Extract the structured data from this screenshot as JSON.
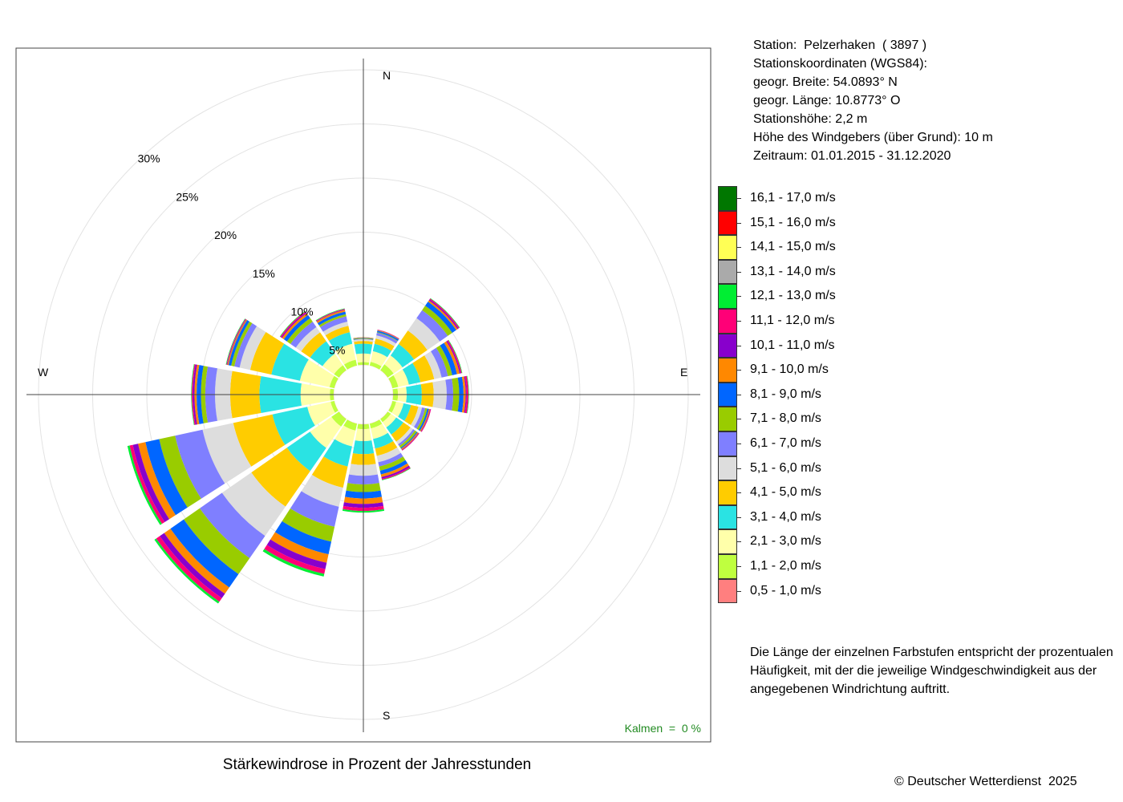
{
  "chart_data": {
    "type": "windrose",
    "title": "Stärkewindrose in Prozent der Jahresstunden",
    "directions": [
      "N",
      "NNE",
      "NE",
      "ENE",
      "E",
      "ESE",
      "SE",
      "SSE",
      "S",
      "SSW",
      "SW",
      "WSW",
      "W",
      "WNW",
      "NW",
      "NNW"
    ],
    "direction_angles_deg": [
      0,
      22.5,
      45,
      67.5,
      90,
      112.5,
      135,
      157.5,
      180,
      202.5,
      225,
      247.5,
      270,
      292.5,
      315,
      337.5
    ],
    "compass_labels": {
      "N": "N",
      "E": "E",
      "S": "S",
      "W": "W"
    },
    "radial_ticks": [
      5,
      10,
      15,
      20,
      25,
      30
    ],
    "radial_tick_labels": [
      "5%",
      "10%",
      "15%",
      "20%",
      "25%",
      "30%"
    ],
    "calm_label": "Kalmen  =  0 %",
    "calm_percent": 0,
    "speed_classes": [
      {
        "label": "0,5 - 1,0 m/s",
        "color": "#ff7f7f"
      },
      {
        "label": "1,1 - 2,0 m/s",
        "color": "#bfff3f"
      },
      {
        "label": "2,1 - 3,0 m/s",
        "color": "#ffffaa"
      },
      {
        "label": "3,1 - 4,0 m/s",
        "color": "#2ae3e3"
      },
      {
        "label": "4,1 - 5,0 m/s",
        "color": "#ffcc00"
      },
      {
        "label": "5,1 - 6,0 m/s",
        "color": "#dddddd"
      },
      {
        "label": "6,1 - 7,0 m/s",
        "color": "#7f7fff"
      },
      {
        "label": "7,1 - 8,0 m/s",
        "color": "#99cc00"
      },
      {
        "label": "8,1 - 9,0 m/s",
        "color": "#0066ff"
      },
      {
        "label": "9,1 - 10,0 m/s",
        "color": "#ff8800"
      },
      {
        "label": "10,1 - 11,0 m/s",
        "color": "#8800cc"
      },
      {
        "label": "11,1 - 12,0 m/s",
        "color": "#ff0077"
      },
      {
        "label": "12,1 - 13,0 m/s",
        "color": "#00ee33"
      },
      {
        "label": "13,1 - 14,0 m/s",
        "color": "#aaaaaa"
      },
      {
        "label": "14,1 - 15,0 m/s",
        "color": "#ffff55"
      },
      {
        "label": "15,1 - 16,0 m/s",
        "color": "#ff0000"
      },
      {
        "label": "16,1 - 17,0 m/s",
        "color": "#007700"
      }
    ],
    "cumulative_percent": [
      [
        2.75,
        3.0,
        3.8,
        4.7,
        4.95,
        5.1,
        5.15,
        5.2,
        5.25,
        5.3,
        5.3,
        5.3,
        5.3,
        5.3,
        5.3,
        5.3,
        5.3
      ],
      [
        2.75,
        3.1,
        4.1,
        4.8,
        5.3,
        5.6,
        5.85,
        5.9,
        6.05,
        6.1,
        6.12,
        6.15,
        6.15,
        6.15,
        6.15,
        6.15,
        6.15
      ],
      [
        2.75,
        3.4,
        4.4,
        5.7,
        7.2,
        8.6,
        9.5,
        10.0,
        10.45,
        10.6,
        10.7,
        10.8,
        10.85,
        10.85,
        10.85,
        10.85,
        10.85
      ],
      [
        2.75,
        3.3,
        4.3,
        5.4,
        6.7,
        7.4,
        8.0,
        8.4,
        8.85,
        9.1,
        9.2,
        9.3,
        9.35,
        9.35,
        9.35,
        9.35,
        9.35
      ],
      [
        2.75,
        3.2,
        4.0,
        5.4,
        6.5,
        7.7,
        8.3,
        8.85,
        9.25,
        9.45,
        9.55,
        9.7,
        9.75,
        9.75,
        9.75,
        9.75,
        9.75
      ],
      [
        2.75,
        3.1,
        3.8,
        4.5,
        5.2,
        5.55,
        5.85,
        6.05,
        6.2,
        6.3,
        6.35,
        6.4,
        6.4,
        6.4,
        6.4,
        6.4,
        6.4
      ],
      [
        2.75,
        3.1,
        3.7,
        4.5,
        5.3,
        5.6,
        5.8,
        6.0,
        6.1,
        6.2,
        6.25,
        6.3,
        6.3,
        6.3,
        6.3,
        6.3,
        6.3
      ],
      [
        2.75,
        3.2,
        4.2,
        5.1,
        5.8,
        6.4,
        6.8,
        7.2,
        7.55,
        7.8,
        7.95,
        8.05,
        8.1,
        8.1,
        8.1,
        8.1,
        8.1
      ],
      [
        2.75,
        3.2,
        4.3,
        5.5,
        6.5,
        7.5,
        8.3,
        9.0,
        9.6,
        10.1,
        10.45,
        10.75,
        10.9,
        10.9,
        10.9,
        10.9,
        10.9
      ],
      [
        2.75,
        3.4,
        4.9,
        6.8,
        8.8,
        10.6,
        12.5,
        13.9,
        15.1,
        15.9,
        16.5,
        16.95,
        17.2,
        17.2,
        17.2,
        17.2,
        17.2
      ],
      [
        2.75,
        3.6,
        6.0,
        8.6,
        12.6,
        15.9,
        18.4,
        20.2,
        21.7,
        22.4,
        22.9,
        23.3,
        23.5,
        23.5,
        23.5,
        23.5,
        23.5
      ],
      [
        2.75,
        3.1,
        5.3,
        8.6,
        12.3,
        15.2,
        17.8,
        19.3,
        20.6,
        21.3,
        21.8,
        22.1,
        22.3,
        22.3,
        22.3,
        22.3,
        22.3
      ],
      [
        2.75,
        3.1,
        5.8,
        9.6,
        12.3,
        13.7,
        14.6,
        15.0,
        15.4,
        15.6,
        15.75,
        15.85,
        15.9,
        15.9,
        15.9,
        15.9,
        15.9
      ],
      [
        2.75,
        3.2,
        6.0,
        8.7,
        10.7,
        11.7,
        12.2,
        12.5,
        12.75,
        12.85,
        12.9,
        12.95,
        13.0,
        13.0,
        13.0,
        13.0,
        13.0
      ],
      [
        2.75,
        3.3,
        4.6,
        6.0,
        7.0,
        7.6,
        8.2,
        8.6,
        8.95,
        9.15,
        9.25,
        9.35,
        9.4,
        9.4,
        9.4,
        9.4,
        9.4
      ],
      [
        2.75,
        3.3,
        4.8,
        5.9,
        6.5,
        6.9,
        7.4,
        7.6,
        7.85,
        8.0,
        8.05,
        8.1,
        8.15,
        8.15,
        8.15,
        8.15,
        8.15
      ]
    ]
  },
  "station": {
    "line1": "Station:  Pelzerhaken  ( 3897 )",
    "line2": "Stationskoordinaten (WGS84):",
    "line3": "geogr. Breite: 54.0893° N",
    "line4": "geogr. Länge: 10.8773° O",
    "line5": "Stationshöhe: 2,2 m",
    "line6": "Höhe des Windgebers (über Grund): 10 m",
    "line7": "Zeitraum: 01.01.2015 - 31.12.2020"
  },
  "note": "Die Länge der einzelnen Farbstufen entspricht der prozentualen Häufigkeit, mit der die jeweilige Windgeschwindigkeit aus der angegebenen Windrichtung auftritt.",
  "copyright": "© Deutscher Wetterdienst  2025"
}
